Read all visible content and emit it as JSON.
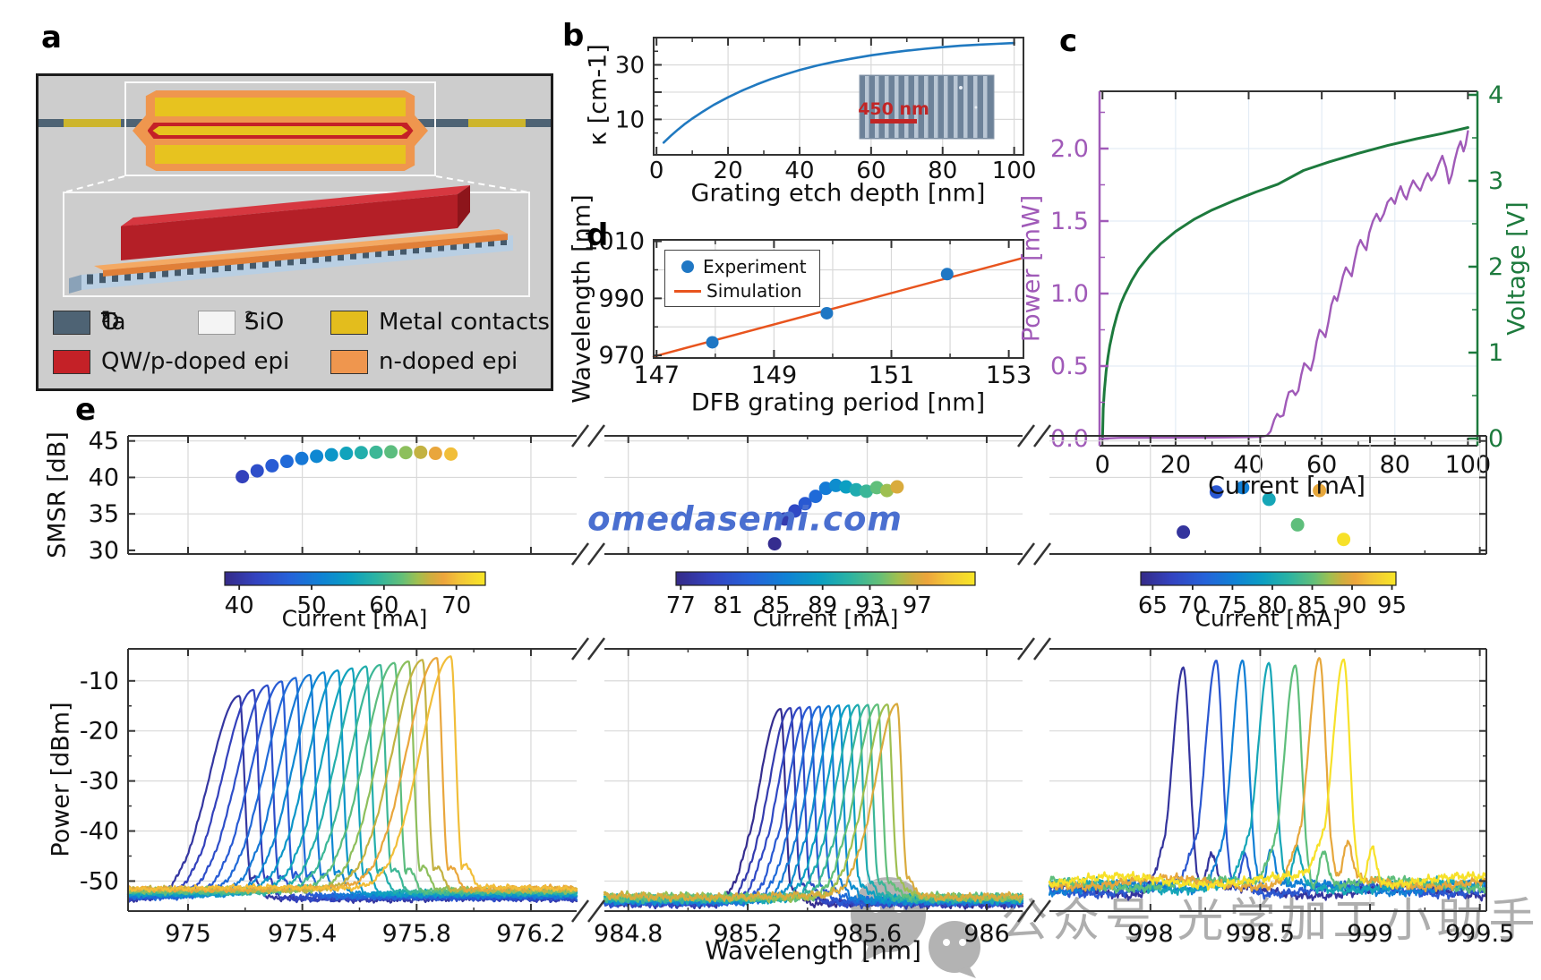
{
  "panel_labels": {
    "a": "a",
    "b": "b",
    "c": "c",
    "d": "d",
    "e": "e"
  },
  "panel_a": {
    "legend": [
      {
        "id": "ta2o5",
        "swatch": "#4e6374",
        "pre": "Ta",
        "sub1": "2",
        "mid": "O",
        "sub2": "5"
      },
      {
        "id": "sio2",
        "swatch": "#f4f4f4",
        "pre": "SiO",
        "sub1": "2"
      },
      {
        "id": "metal",
        "swatch": "#e3bd1d",
        "label": "Metal contacts"
      },
      {
        "id": "qw",
        "swatch": "#c42127",
        "label": "QW/p-doped epi"
      },
      {
        "id": "nepi",
        "swatch": "#ef964e",
        "label": "n-doped epi"
      }
    ]
  },
  "watermarks": {
    "center": "omedasemi.com",
    "center_color": "#4a6fd0",
    "bottom_text": "公众号 光学加工小助手",
    "bottom_color": "#aeaeae"
  },
  "palette": [
    [
      0,
      "#352a87"
    ],
    [
      0.12,
      "#3343c0"
    ],
    [
      0.25,
      "#2562d9"
    ],
    [
      0.37,
      "#0f82d5"
    ],
    [
      0.48,
      "#0b9fc2"
    ],
    [
      0.58,
      "#2bb3a3"
    ],
    [
      0.68,
      "#63bf78"
    ],
    [
      0.74,
      "#9fbf50"
    ],
    [
      0.79,
      "#cfae3e"
    ],
    [
      0.84,
      "#eda53c"
    ],
    [
      0.9,
      "#f2c438"
    ],
    [
      1,
      "#f8e626"
    ]
  ],
  "chart_data": [
    {
      "id": "b",
      "type": "line",
      "xlabel": "Grating etch depth [nm]",
      "ylabel": "κ [cm-1]",
      "xlim": [
        -0.8,
        102.6
      ],
      "ylim": [
        -3,
        40
      ],
      "xticks": [
        0,
        20,
        40,
        60,
        80,
        100
      ],
      "xminor": [
        10,
        30,
        50,
        70,
        90
      ],
      "yticks": [
        10,
        20,
        30
      ],
      "ytick_labels": [
        10,
        30
      ],
      "yminor": [
        5,
        15,
        25,
        35
      ],
      "grid_x": [
        20,
        40,
        60,
        80,
        100
      ],
      "grid_y": [
        10,
        20,
        30
      ],
      "line_color": "#2079c0",
      "x": [
        2,
        4,
        6,
        8,
        10,
        13,
        16,
        20,
        24,
        28,
        32,
        36,
        40,
        45,
        50,
        55,
        60,
        65,
        70,
        75,
        80,
        85,
        90,
        95,
        100
      ],
      "y": [
        1.5,
        4,
        6.3,
        8.4,
        10.3,
        12.9,
        15.3,
        18.1,
        20.6,
        22.8,
        24.8,
        26.5,
        28.1,
        29.8,
        31.2,
        32.4,
        33.5,
        34.4,
        35.2,
        35.9,
        36.5,
        37,
        37.4,
        37.7,
        38
      ],
      "inset": {
        "label": "450 nm",
        "text_color": "#c22525"
      }
    },
    {
      "id": "c",
      "type": "line",
      "xlabel": "Current [mA]",
      "ylabel_left": "Power [mW]",
      "ylabel_right": "Voltage [V]",
      "left_color": "#a05ab8",
      "right_color": "#1d7a3d",
      "xlim": [
        -0.8,
        102.6
      ],
      "ylim_left": [
        0,
        2.395
      ],
      "ylim_right": [
        0,
        4.04
      ],
      "xticks": [
        0,
        20,
        40,
        60,
        80,
        100
      ],
      "xminor": [
        10,
        30,
        50,
        70,
        90
      ],
      "yticks_left": [
        0.0,
        0.5,
        1.0,
        1.5,
        2.0
      ],
      "yticks_right": [
        0,
        1,
        2,
        3,
        4
      ],
      "power": {
        "x": [
          0,
          5,
          10,
          20,
          30,
          40,
          43,
          45,
          46,
          47,
          47.8,
          48.6,
          49.5,
          50.3,
          51,
          52,
          52.8,
          53.6,
          54.4,
          55.2,
          56,
          57,
          57.8,
          58.6,
          59.4,
          60.2,
          61,
          61.8,
          62.6,
          63.4,
          64.2,
          65,
          65.8,
          66.6,
          67.4,
          68.2,
          69,
          69.8,
          70.6,
          71.4,
          72.2,
          73,
          74,
          75,
          76,
          77,
          78,
          79,
          80,
          80.8,
          81.6,
          82.4,
          83.2,
          84,
          85,
          86,
          87,
          88,
          89,
          90,
          91,
          92,
          93,
          94,
          94.8,
          95.6,
          96.4,
          97.2,
          98,
          98.8,
          99.4,
          100
        ],
        "y": [
          0,
          0.005,
          0.005,
          0.006,
          0.007,
          0.01,
          0.012,
          0.02,
          0.05,
          0.13,
          0.17,
          0.15,
          0.16,
          0.26,
          0.32,
          0.33,
          0.3,
          0.33,
          0.44,
          0.52,
          0.5,
          0.47,
          0.55,
          0.67,
          0.75,
          0.73,
          0.7,
          0.8,
          0.92,
          0.98,
          0.95,
          1.03,
          1.12,
          1.18,
          1.15,
          1.12,
          1.23,
          1.32,
          1.37,
          1.33,
          1.3,
          1.42,
          1.5,
          1.55,
          1.5,
          1.55,
          1.63,
          1.66,
          1.62,
          1.69,
          1.74,
          1.68,
          1.65,
          1.72,
          1.78,
          1.74,
          1.71,
          1.78,
          1.83,
          1.78,
          1.82,
          1.89,
          1.95,
          1.87,
          1.76,
          1.82,
          1.92,
          2,
          2.05,
          1.98,
          2.03,
          2.12
        ]
      },
      "voltage": {
        "x": [
          0,
          0.2,
          0.5,
          1,
          1.5,
          2,
          3,
          4,
          5,
          6,
          8,
          10,
          13,
          16,
          20,
          25,
          30,
          36,
          42,
          48,
          55,
          62,
          70,
          78,
          86,
          93,
          100
        ],
        "y": [
          0,
          0.35,
          0.55,
          0.78,
          0.95,
          1.08,
          1.28,
          1.44,
          1.57,
          1.67,
          1.84,
          1.98,
          2.14,
          2.27,
          2.41,
          2.55,
          2.66,
          2.77,
          2.87,
          2.96,
          3.12,
          3.22,
          3.32,
          3.41,
          3.49,
          3.55,
          3.62
        ]
      }
    },
    {
      "id": "d",
      "type": "scatter+line",
      "xlabel": "DFB grating period [nm]",
      "ylabel": "Wavelength [nm]",
      "xlim": [
        146.95,
        153.25
      ],
      "ylim": [
        969.1,
        1010.5
      ],
      "xticks": [
        147,
        149,
        151,
        153
      ],
      "xminor": [
        148,
        150,
        152
      ],
      "yticks": [
        970,
        990,
        1010
      ],
      "yminor": [
        980,
        1000
      ],
      "grid_x": [
        148,
        149,
        150,
        151,
        152
      ],
      "grid_y": [
        980,
        990,
        1000
      ],
      "legend": {
        "experiment": "Experiment",
        "simulation": "Simulation"
      },
      "experiment": {
        "color": "#1f77c4",
        "x": [
          147.95,
          149.9,
          151.95
        ],
        "y": [
          974.6,
          984.8,
          998.5
        ]
      },
      "simulation": {
        "color": "#e8541e",
        "x": [
          146.95,
          153.25
        ],
        "y": [
          969.6,
          1004.2
        ]
      }
    },
    {
      "id": "smsr",
      "type": "scatter",
      "ylabel": "SMSR [dB]",
      "ylim": [
        29.5,
        45.7
      ],
      "yticks": [
        30,
        35,
        40,
        45
      ],
      "grid_y": [
        35,
        40,
        45
      ],
      "segments": [
        {
          "xlim": [
            974.79,
            976.36
          ],
          "xticks": [
            975,
            975.4,
            975.8,
            976.2
          ],
          "points": {
            "wavelength": [
              975.19,
              975.242,
              975.294,
              975.346,
              975.398,
              975.45,
              975.502,
              975.554,
              975.606,
              975.658,
              975.71,
              975.762,
              975.814,
              975.866,
              975.92
            ],
            "smsr": [
              40.1,
              40.9,
              41.6,
              42.2,
              42.6,
              42.9,
              43.1,
              43.3,
              43.4,
              43.45,
              43.5,
              43.4,
              43.45,
              43.3,
              43.2
            ],
            "current": [
              42,
              44,
              46,
              48,
              50,
              52,
              54,
              56,
              58,
              60,
              62,
              64,
              66,
              68,
              70
            ]
          },
          "colorbar": {
            "label": "Current [mA]",
            "range": [
              38,
              74
            ],
            "ticks": [
              40,
              50,
              60,
              70
            ]
          }
        },
        {
          "xlim": [
            984.72,
            986.12
          ],
          "xticks": [
            984.8,
            985.2,
            985.6,
            986
          ],
          "points": {
            "wavelength": [
              985.29,
              985.324,
              985.358,
              985.392,
              985.427,
              985.461,
              985.495,
              985.529,
              985.563,
              985.597,
              985.632,
              985.666,
              985.7
            ],
            "smsr": [
              30.9,
              34.3,
              35.4,
              36.4,
              37.4,
              38.5,
              38.9,
              38.7,
              38.3,
              38.1,
              38.6,
              38.2,
              38.7
            ],
            "current": [
              77,
              78.7,
              80.3,
              82,
              83.7,
              85.3,
              87,
              88.7,
              90.3,
              92,
              93.7,
              95.3,
              97
            ]
          },
          "colorbar": {
            "label": "Current [mA]",
            "range": [
              76.6,
              101.9
            ],
            "ticks": [
              77,
              81,
              85,
              89,
              93,
              97
            ]
          }
        },
        {
          "xlim": [
            997.54,
            999.53
          ],
          "xticks": [
            998,
            998.5,
            999,
            999.5
          ],
          "points": {
            "wavelength": [
              998.15,
              998.3,
              998.42,
              998.54,
              998.67,
              998.77,
              998.88
            ],
            "smsr": [
              32.5,
              38,
              38.6,
              37,
              33.5,
              38.2,
              31.5
            ],
            "current": [
              65,
              70,
              75,
              80,
              85,
              90,
              95
            ]
          },
          "colorbar": {
            "label": "Current [mA]",
            "range": [
              63.5,
              95.5
            ],
            "ticks": [
              65,
              70,
              75,
              80,
              85,
              90,
              95
            ]
          }
        }
      ]
    },
    {
      "id": "spectra",
      "type": "line",
      "xlabel": "Wavelength [nm]",
      "ylabel": "Power [dBm]",
      "ylim": [
        -56,
        -3.6
      ],
      "yticks": [
        -10,
        -20,
        -30,
        -40,
        -50
      ],
      "yminor": [
        -15,
        -25,
        -35,
        -45
      ],
      "segments": [
        {
          "xlim": [
            974.79,
            976.36
          ],
          "xticks": [
            975,
            975.4,
            975.8,
            976.2
          ],
          "baseline": -52.5,
          "peaks": {
            "center": [
              975.18,
              975.229,
              975.279,
              975.328,
              975.377,
              975.427,
              975.476,
              975.525,
              975.575,
              975.624,
              975.673,
              975.723,
              975.772,
              975.821,
              975.871,
              975.92
            ],
            "height": [
              -13,
              -11.8,
              -10.9,
              -10.1,
              -9.4,
              -8.8,
              -8.3,
              -7.9,
              -7.5,
              -7.1,
              -6.8,
              -6.4,
              -6.1,
              -5.8,
              -5.4,
              -5.1
            ],
            "current": [
              40,
              42,
              44,
              46,
              48,
              50,
              52,
              54,
              56,
              58,
              60,
              62,
              64,
              66,
              68,
              70
            ]
          },
          "shape": {
            "sL": 0.105,
            "sR": 0.017,
            "shoulder": 0.5,
            "shoulder_off": 0.085,
            "ripple": 0.1,
            "ripple_off": 0.05,
            "noise": 0.55,
            "slow": 0.2,
            "base_spread": 2.2
          }
        },
        {
          "xlim": [
            984.72,
            986.12
          ],
          "xticks": [
            984.8,
            985.2,
            985.6,
            986
          ],
          "baseline": -53.8,
          "peaks": {
            "center": [
              985.31,
              985.343,
              985.375,
              985.408,
              985.44,
              985.473,
              985.505,
              985.538,
              985.57,
              985.603,
              985.635,
              985.668,
              985.7
            ],
            "height": [
              -15.6,
              -15.4,
              -15.3,
              -15.2,
              -15.1,
              -15,
              -14.9,
              -14.9,
              -14.8,
              -14.8,
              -14.7,
              -14.7,
              -14.6
            ],
            "current": [
              77,
              78.7,
              80.3,
              82,
              83.7,
              85.3,
              87,
              88.7,
              90.3,
              92,
              93.7,
              95.3,
              97
            ]
          },
          "shape": {
            "sL": 0.072,
            "sR": 0.015,
            "shoulder": 0.48,
            "shoulder_off": 0.062,
            "ripple": 0.08,
            "ripple_off": 0.04,
            "noise": 0.8,
            "slow": 0.25,
            "base_spread": 1.5
          }
        },
        {
          "xlim": [
            997.54,
            999.53
          ],
          "xticks": [
            998,
            998.5,
            999,
            999.5
          ],
          "baseline": -51,
          "peaks": {
            "center": [
              998.15,
              998.3,
              998.42,
              998.54,
              998.66,
              998.77,
              998.88
            ],
            "height": [
              -7.3,
              -5.9,
              -5.9,
              -6.4,
              -6.9,
              -5.4,
              -5.7
            ],
            "current": [
              65,
              70,
              75,
              80,
              85,
              90,
              95
            ]
          },
          "shape": {
            "sL": 0.05,
            "sR": 0.028,
            "shoulder": 0.3,
            "shoulder_off": 0.05,
            "ripple": 0.16,
            "ripple_off": 0.13,
            "noise": 0.9,
            "slow": 0.9,
            "base_spread": 2.2
          }
        }
      ]
    }
  ]
}
